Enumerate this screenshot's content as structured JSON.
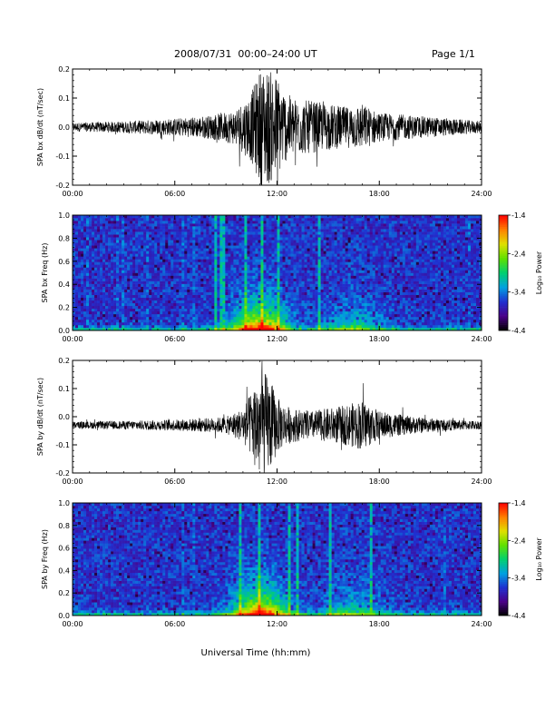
{
  "header": {
    "title": "2008/07/31  00:00–24:00 UT",
    "page": "Page 1/1"
  },
  "chart_data": [
    {
      "type": "line",
      "ylabel": "SPA bx dB/dt (nT/sec)",
      "xlim": [
        "00:00",
        "24:00"
      ],
      "ylim": [
        -0.2,
        0.2
      ],
      "xticks": [
        "00:00",
        "06:00",
        "12:00",
        "18:00",
        "24:00"
      ],
      "yticks": [
        "-0.2",
        "-0.1",
        "0.0",
        "0.1",
        "0.2"
      ],
      "baseline": 0.0,
      "envelope": {
        "time_hours": [
          0,
          3,
          6,
          8,
          9.5,
          10.5,
          11,
          11.5,
          12,
          12.5,
          13,
          14,
          15,
          16,
          17,
          18,
          20,
          22,
          24
        ],
        "amplitude": [
          0.015,
          0.02,
          0.03,
          0.04,
          0.06,
          0.12,
          0.2,
          0.2,
          0.18,
          0.12,
          0.1,
          0.09,
          0.08,
          0.07,
          0.08,
          0.05,
          0.04,
          0.03,
          0.02
        ]
      }
    },
    {
      "type": "heatmap",
      "ylabel": "SPA bx Freq (Hz)",
      "xlim": [
        "00:00",
        "24:00"
      ],
      "ylim": [
        0.0,
        1.0
      ],
      "xticks": [
        "00:00",
        "06:00",
        "12:00",
        "18:00",
        "24:00"
      ],
      "yticks": [
        "0.0",
        "0.2",
        "0.4",
        "0.6",
        "0.8",
        "1.0"
      ],
      "colorbar": {
        "label": "Log₁₀ Power",
        "range": [
          -4.4,
          -1.4
        ],
        "ticks": [
          "-1.4",
          "-2.4",
          "-3.4",
          "-4.4"
        ],
        "colormap": [
          "#000000",
          "#4a0088",
          "#2030d0",
          "#00a0e0",
          "#00d070",
          "#60e000",
          "#e0e000",
          "#ff8000",
          "#ff0000"
        ]
      },
      "activity_peak_hours": 11.0
    },
    {
      "type": "line",
      "ylabel": "SPA by dB/dt (nT/sec)",
      "xlim": [
        "00:00",
        "24:00"
      ],
      "ylim": [
        -0.2,
        0.2
      ],
      "xticks": [
        "00:00",
        "06:00",
        "12:00",
        "18:00",
        "24:00"
      ],
      "yticks": [
        "-0.2",
        "-0.1",
        "0.0",
        "0.1",
        "0.2"
      ],
      "baseline": -0.03,
      "envelope": {
        "time_hours": [
          0,
          3,
          6,
          8,
          9,
          10,
          10.5,
          11,
          11.5,
          12,
          12.5,
          13,
          14,
          15,
          16,
          17,
          18,
          20,
          22,
          24
        ],
        "amplitude": [
          0.012,
          0.015,
          0.02,
          0.025,
          0.03,
          0.06,
          0.12,
          0.2,
          0.18,
          0.1,
          0.07,
          0.06,
          0.05,
          0.06,
          0.07,
          0.09,
          0.05,
          0.03,
          0.02,
          0.015
        ]
      }
    },
    {
      "type": "heatmap",
      "ylabel": "SPA by Freq (Hz)",
      "xlim": [
        "00:00",
        "24:00"
      ],
      "ylim": [
        0.0,
        1.0
      ],
      "xticks": [
        "00:00",
        "06:00",
        "12:00",
        "18:00",
        "24:00"
      ],
      "yticks": [
        "0.0",
        "0.2",
        "0.4",
        "0.6",
        "0.8",
        "1.0"
      ],
      "colorbar": {
        "label": "Log₁₀ Power",
        "range": [
          -4.4,
          -1.4
        ],
        "ticks": [
          "-1.4",
          "-2.4",
          "-3.4",
          "-4.4"
        ],
        "colormap": [
          "#000000",
          "#4a0088",
          "#2030d0",
          "#00a0e0",
          "#00d070",
          "#60e000",
          "#e0e000",
          "#ff8000",
          "#ff0000"
        ]
      },
      "activity_peak_hours": 11.0
    }
  ],
  "xlabel": "Universal Time (hh:mm)"
}
